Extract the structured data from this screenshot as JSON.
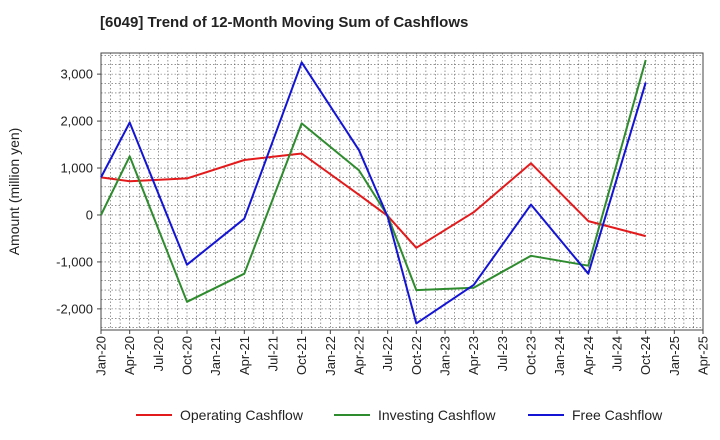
{
  "title": "[6049]  Trend of 12-Month Moving Sum of Cashflows",
  "chart_data": {
    "type": "line",
    "title": "[6049]  Trend of 12-Month Moving Sum of Cashflows",
    "xlabel": "",
    "ylabel": "Amount (million yen)",
    "x_ticks": [
      "Jan-20",
      "Apr-20",
      "Jul-20",
      "Oct-20",
      "Jan-21",
      "Apr-21",
      "Jul-21",
      "Oct-21",
      "Jan-22",
      "Apr-22",
      "Jul-22",
      "Oct-22",
      "Jan-23",
      "Apr-23",
      "Jul-23",
      "Oct-23",
      "Jan-24",
      "Apr-24",
      "Jul-24",
      "Oct-24",
      "Jan-25",
      "Apr-25"
    ],
    "y_ticks": [
      -2000,
      -1000,
      0,
      1000,
      2000,
      3000
    ],
    "y_tick_labels": [
      "-2,000",
      "-1,000",
      "0",
      "1,000",
      "2,000",
      "3,000"
    ],
    "ylim": [
      -2450,
      3450
    ],
    "grid": true,
    "legend_position": "bottom",
    "series": [
      {
        "name": "Operating Cashflow",
        "color": "#e31a1c",
        "x": [
          "Jan-20",
          "Apr-20",
          "Oct-20",
          "Apr-21",
          "Oct-21",
          "Apr-22",
          "Jul-22",
          "Oct-22",
          "Apr-23",
          "Oct-23",
          "Apr-24",
          "Oct-24"
        ],
        "values": [
          800,
          720,
          780,
          1170,
          1310,
          430,
          -20,
          -700,
          60,
          1100,
          -130,
          -450
        ]
      },
      {
        "name": "Investing Cashflow",
        "color": "#2e8b2e",
        "x": [
          "Jan-20",
          "Apr-20",
          "Oct-20",
          "Apr-21",
          "Oct-21",
          "Apr-22",
          "Jul-22",
          "Oct-22",
          "Apr-23",
          "Oct-23",
          "Apr-24",
          "Oct-24"
        ],
        "values": [
          0,
          1250,
          -1850,
          -1250,
          1950,
          950,
          -20,
          -1600,
          -1550,
          -870,
          -1080,
          3300
        ]
      },
      {
        "name": "Free Cashflow",
        "color": "#1414d4",
        "x": [
          "Jan-20",
          "Apr-20",
          "Oct-20",
          "Apr-21",
          "Oct-21",
          "Apr-22",
          "Jul-22",
          "Oct-22",
          "Apr-23",
          "Oct-23",
          "Apr-24",
          "Oct-24"
        ],
        "values": [
          800,
          1970,
          -1060,
          -80,
          3250,
          1380,
          -40,
          -2310,
          -1490,
          220,
          -1250,
          2820
        ]
      }
    ]
  }
}
